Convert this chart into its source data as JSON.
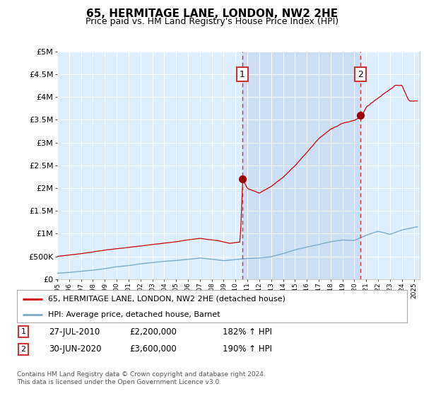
{
  "title": "65, HERMITAGE LANE, LONDON, NW2 2HE",
  "subtitle": "Price paid vs. HM Land Registry's House Price Index (HPI)",
  "ylabel_ticks": [
    "£0",
    "£500K",
    "£1M",
    "£1.5M",
    "£2M",
    "£2.5M",
    "£3M",
    "£3.5M",
    "£4M",
    "£4.5M",
    "£5M"
  ],
  "ylabel_values": [
    0,
    500000,
    1000000,
    1500000,
    2000000,
    2500000,
    3000000,
    3500000,
    4000000,
    4500000,
    5000000
  ],
  "ylim": [
    0,
    5000000
  ],
  "xlim_start": 1995.0,
  "xlim_end": 2025.5,
  "sale1_x": 2010.57,
  "sale1_y": 2200000,
  "sale1_label": "1",
  "sale2_x": 2020.5,
  "sale2_y": 3600000,
  "sale2_label": "2",
  "red_line_color": "#cc0000",
  "blue_line_color": "#7aaacc",
  "plot_bg_color": "#ddeeff",
  "shade_color": "#c5d8f0",
  "grid_color": "#ffffff",
  "annotation_box_color": "#cc3333",
  "dashed_line_color": "#cc3333",
  "legend_label_red": "65, HERMITAGE LANE, LONDON, NW2 2HE (detached house)",
  "legend_label_blue": "HPI: Average price, detached house, Barnet",
  "footer_text": "Contains HM Land Registry data © Crown copyright and database right 2024.\nThis data is licensed under the Open Government Licence v3.0.",
  "table_rows": [
    {
      "label": "1",
      "date": "27-JUL-2010",
      "price": "£2,200,000",
      "hpi": "182% ↑ HPI"
    },
    {
      "label": "2",
      "date": "30-JUN-2020",
      "price": "£3,600,000",
      "hpi": "190% ↑ HPI"
    }
  ]
}
